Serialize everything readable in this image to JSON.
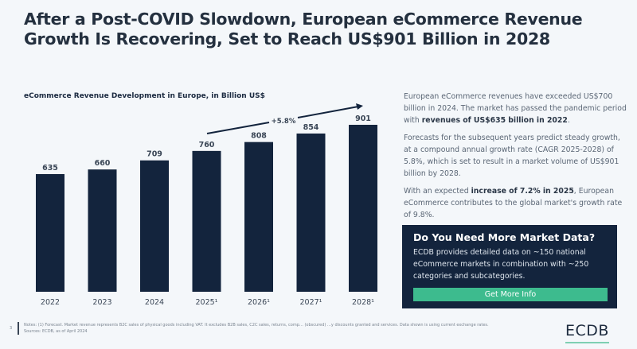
{
  "title": "After a Post-COVID Slowdown, European eCommerce Revenue Growth Is Recovering, Set to Reach US$901 Billion in 2028",
  "chart_data": {
    "type": "bar",
    "title": "eCommerce Revenue Development in Europe, in Billion US$",
    "categories": [
      "2022",
      "2023",
      "2024",
      "2025¹",
      "2026¹",
      "2027¹",
      "2028¹"
    ],
    "values": [
      635,
      660,
      709,
      760,
      808,
      854,
      901
    ],
    "annotation": "+5.8%",
    "bar_color": "#13243d",
    "grid": false,
    "ylim": [
      0,
      901
    ]
  },
  "side": {
    "p1a": "European eCommerce revenues have exceeded US$700 billion in 2024. The market has passed the pandemic period with ",
    "p1b": "revenues of US$635 billion in 2022",
    "p1c": ".",
    "p2": "Forecasts for the subsequent years predict steady growth, at a compound annual growth rate (CAGR 2025-2028) of 5.8%, which is set to result in a market volume of US$901 billion by 2028.",
    "p3a": "With an expected ",
    "p3b": "increase of 7.2% in 2025",
    "p3c": ", European eCommerce contributes to the global market's growth rate of 9.8%."
  },
  "cta": {
    "heading": "Do You Need More Market Data?",
    "text": "ECDB provides detailed data on ~150 national eCommerce markets in combination with ~250 categories and subcategories.",
    "button": "Get More Info",
    "accent": "#3dbb8e"
  },
  "footer": {
    "page": "3",
    "notes": "Notes:   (1) Forecast. Market revenue represents B2C sales of physical goods including VAT. It excludes B2B sales, C2C sales, returns, comp… (obscured) …y discounts granted and services. Data shown is using current exchange rates.",
    "sources": "Sources:   ECDB, as of April 2024",
    "logo": "ECDB"
  }
}
